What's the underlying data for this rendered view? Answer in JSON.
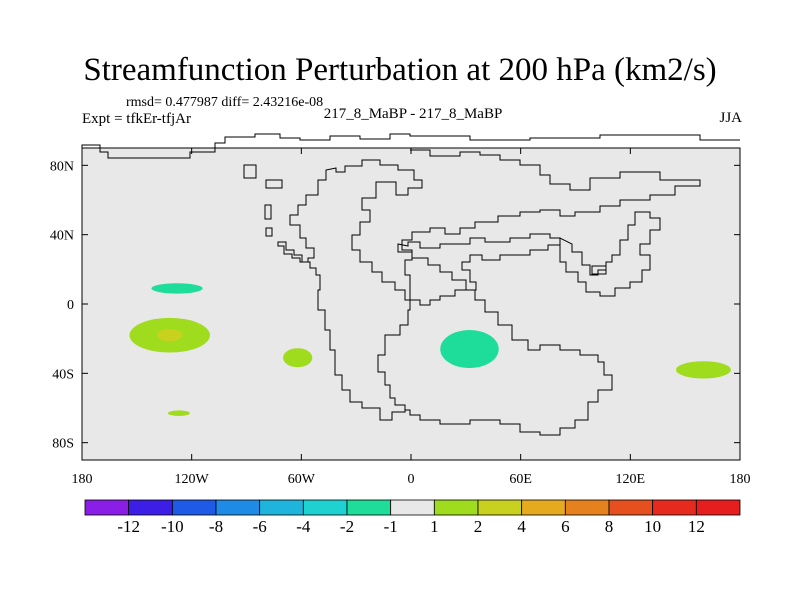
{
  "title": "Streamfunction Perturbation at 200 hPa (km2/s)",
  "stats_line": "rmsd= 0.477987 diff= 2.43216e-08",
  "experiment": "Expt = tfkEr-tfjAr",
  "runs": "217_8_MaBP - 217_8_MaBP",
  "season": "JJA",
  "map": {
    "projection": "cylindrical-equidistant",
    "lon_range": [
      -180,
      180
    ],
    "lat_range": [
      -90,
      90
    ],
    "background_color": "#e8e8e8",
    "coastline_color": "#000000"
  },
  "lon_ticks": [
    {
      "lon": -180,
      "label": "180"
    },
    {
      "lon": -120,
      "label": "120W"
    },
    {
      "lon": -60,
      "label": "60W"
    },
    {
      "lon": 0,
      "label": "0"
    },
    {
      "lon": 60,
      "label": "60E"
    },
    {
      "lon": 120,
      "label": "120E"
    },
    {
      "lon": 180,
      "label": "180"
    }
  ],
  "lat_ticks": [
    {
      "lat": 80,
      "label": "80N"
    },
    {
      "lat": 40,
      "label": "40N"
    },
    {
      "lat": 0,
      "label": "0"
    },
    {
      "lat": -40,
      "label": "40S"
    },
    {
      "lat": -80,
      "label": "80S"
    }
  ],
  "colorbar": {
    "labels": [
      "-12",
      "-10",
      "-8",
      "-6",
      "-4",
      "-2",
      "-1",
      "1",
      "2",
      "4",
      "6",
      "8",
      "10",
      "12"
    ],
    "colors": [
      "#8a1ee6",
      "#3c1ee6",
      "#1e5ae6",
      "#1e8ce6",
      "#1eb4dc",
      "#1ed2d2",
      "#1edc9a",
      "#e8e8e8",
      "#a0dc1e",
      "#c8d21e",
      "#e6aa1e",
      "#e6821e",
      "#e6501e",
      "#e62a1e",
      "#e61e1e"
    ]
  },
  "anomalies": [
    {
      "lon": -128,
      "lat": 9,
      "rlon": 14,
      "rlat": 3,
      "color": "#1edc9a"
    },
    {
      "lon": -132,
      "lat": -18,
      "rlon": 22,
      "rlat": 10,
      "color": "#a0dc1e"
    },
    {
      "lon": -132,
      "lat": -18,
      "rlon": 7,
      "rlat": 3.5,
      "color": "#c8d21e"
    },
    {
      "lon": -62,
      "lat": -31,
      "rlon": 8,
      "rlat": 5.5,
      "color": "#a0dc1e"
    },
    {
      "lon": 32,
      "lat": -26,
      "rlon": 16,
      "rlat": 11,
      "color": "#1edc9a"
    },
    {
      "lon": 160,
      "lat": -38,
      "rlon": 15,
      "rlat": 5,
      "color": "#a0dc1e"
    },
    {
      "lon": -127,
      "lat": -63,
      "rlon": 6,
      "rlat": 1.6,
      "color": "#a0dc1e"
    }
  ]
}
